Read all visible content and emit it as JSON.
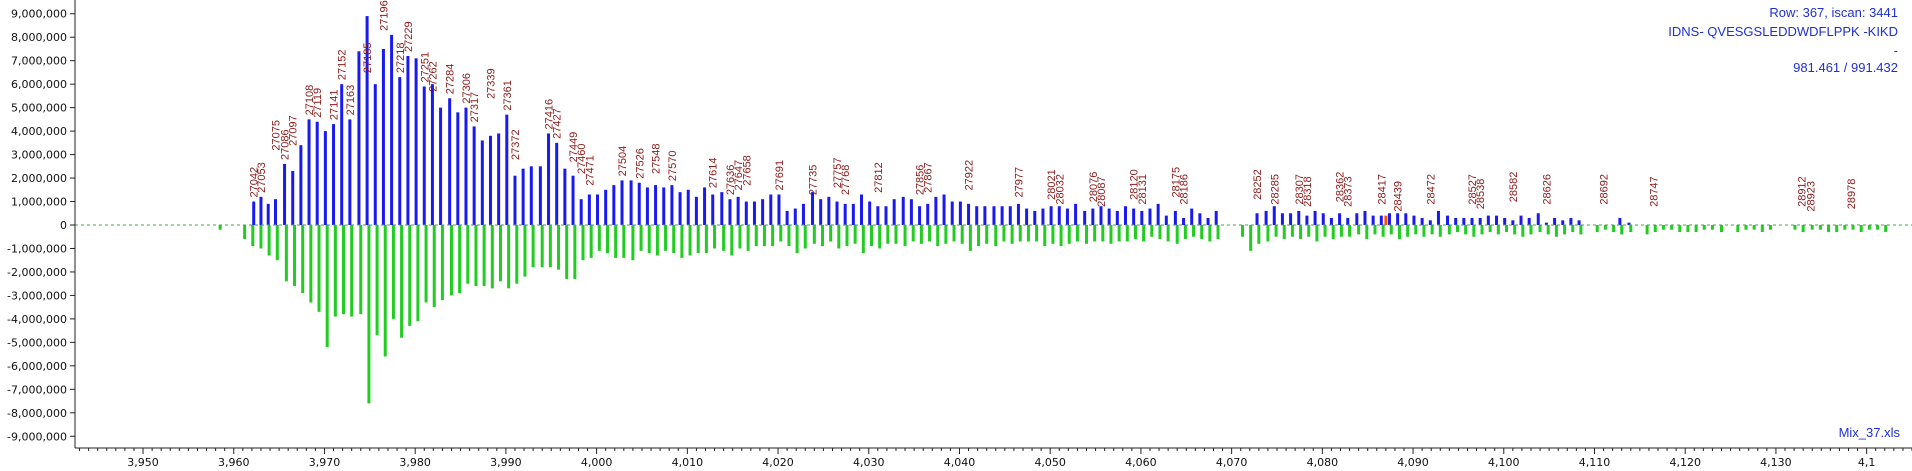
{
  "info": {
    "line1": "Row: 367, iscan: 3441",
    "line2": "IDNS- QVESGSLEDDWDFLPPK -KIKD",
    "line3": "-",
    "line4": "981.461 / 991.432",
    "file": "Mix_37.xls"
  },
  "colors": {
    "positive": "#1a1aee",
    "negative": "#22cc22",
    "highlight": "#ff5500",
    "label": "#8b1a1a",
    "zero_line": "#44aa44",
    "info": "#1f2fd6"
  },
  "chart_data": {
    "type": "bar",
    "title": "",
    "xlabel": "",
    "ylabel": "",
    "xlim": [
      3942.5,
      4145
    ],
    "ylim": [
      -9500000,
      9500000
    ],
    "y_ticks": [
      "9,000,000",
      "8,000,000",
      "7,000,000",
      "6,000,000",
      "5,000,000",
      "4,000,000",
      "3,000,000",
      "2,000,000",
      "1,000,000",
      "0",
      "-1,000,000",
      "-2,000,000",
      "-3,000,000",
      "-4,000,000",
      "-5,000,000",
      "-6,000,000",
      "-7,000,000",
      "-8,000,000",
      "-9,000,000"
    ],
    "y_tick_values": [
      9000000,
      8000000,
      7000000,
      6000000,
      5000000,
      4000000,
      3000000,
      2000000,
      1000000,
      0,
      -1000000,
      -2000000,
      -3000000,
      -4000000,
      -5000000,
      -6000000,
      -7000000,
      -8000000,
      -9000000
    ],
    "x_ticks": [
      "3,950",
      "3,960",
      "3,970",
      "3,980",
      "3,990",
      "4,000",
      "4,010",
      "4,020",
      "4,030",
      "4,040",
      "4,050",
      "4,060",
      "4,070",
      "4,080",
      "4,090",
      "4,100",
      "4,110",
      "4,120",
      "4,130",
      "4,1"
    ],
    "x_tick_values": [
      3950,
      3960,
      3970,
      3980,
      3990,
      4000,
      4010,
      4020,
      4030,
      4040,
      4050,
      4060,
      4070,
      4080,
      4090,
      4100,
      4110,
      4120,
      4130,
      4140
    ],
    "positive_x": [
      3962.2,
      3963.0,
      3963.8,
      3964.6,
      3965.6,
      3966.5,
      3967.4,
      3968.3,
      3969.2,
      3970.1,
      3971.0,
      3971.9,
      3972.8,
      3973.8,
      3974.7,
      3975.6,
      3976.5,
      3977.4,
      3978.3,
      3979.2,
      3980.1,
      3981.0,
      3981.9,
      3982.8,
      3983.8,
      3984.7,
      3985.6,
      3986.5,
      3987.4,
      3988.3,
      3989.2,
      3990.1,
      3991.0,
      3991.9,
      3992.8,
      3993.8,
      3994.7,
      3995.6,
      3996.5,
      3997.4,
      3998.3,
      3999.2,
      4000.1,
      4001.0,
      4001.9,
      4002.8,
      4003.8,
      4004.7,
      4005.6,
      4006.5,
      4007.4,
      4008.3,
      4009.2,
      4010.1,
      4011.0,
      4011.9,
      4012.8,
      4013.8,
      4014.7,
      4015.6,
      4016.5,
      4017.4,
      4018.3,
      4019.2,
      4020.1,
      4021.0,
      4021.9,
      4022.8,
      4023.8,
      4024.7,
      4025.6,
      4026.5,
      4027.4,
      4028.3,
      4029.2,
      4030.1,
      4031.0,
      4031.9,
      4032.8,
      4033.8,
      4034.7,
      4035.6,
      4036.5,
      4037.4,
      4038.3,
      4039.2,
      4040.1,
      4041.0,
      4041.9,
      4042.8,
      4043.8,
      4044.7,
      4045.6,
      4046.5,
      4047.4,
      4048.3,
      4049.2,
      4050.1,
      4051.0,
      4051.9,
      4052.8,
      4053.8,
      4054.7,
      4055.6,
      4056.5,
      4057.4,
      4058.3,
      4059.2,
      4060.1,
      4061.0,
      4061.9,
      4062.8,
      4063.8,
      4064.7,
      4065.6,
      4066.5,
      4067.4,
      4068.3,
      4072.8,
      4073.8,
      4074.7,
      4075.6,
      4076.5,
      4077.4,
      4078.3,
      4079.2,
      4080.1,
      4081.0,
      4081.9,
      4082.8,
      4083.8,
      4084.7,
      4085.6,
      4086.5,
      4087.4,
      4088.3,
      4089.2,
      4090.1,
      4091.0,
      4091.9,
      4092.8,
      4093.8,
      4094.7,
      4095.6,
      4096.5,
      4097.4,
      4098.3,
      4099.2,
      4100.1,
      4101.0,
      4101.9,
      4102.8,
      4103.8,
      4104.7,
      4105.6,
      4106.5,
      4107.4,
      4108.3,
      4112.8,
      4113.8,
      4118.3,
      4119.2,
      4132.8,
      4133.8,
      4138.3
    ],
    "positive_values": [
      1000000,
      1200000,
      900000,
      1100000,
      2600000,
      2300000,
      3400000,
      4500000,
      4400000,
      4000000,
      4300000,
      6000000,
      4500000,
      7400000,
      8900000,
      6000000,
      7500000,
      8100000,
      6300000,
      7200000,
      7100000,
      5900000,
      6000000,
      5000000,
      5400000,
      4800000,
      5000000,
      4200000,
      3600000,
      3800000,
      3900000,
      4700000,
      2100000,
      2400000,
      2500000,
      2500000,
      3900000,
      3500000,
      2400000,
      2100000,
      1100000,
      1300000,
      1300000,
      1500000,
      1700000,
      1900000,
      1900000,
      1800000,
      1600000,
      1700000,
      1600000,
      1700000,
      1400000,
      1500000,
      1200000,
      1600000,
      1300000,
      1400000,
      1100000,
      1200000,
      1000000,
      1000000,
      1100000,
      1300000,
      1300000,
      600000,
      700000,
      900000,
      1400000,
      1100000,
      1200000,
      1000000,
      900000,
      900000,
      1300000,
      1000000,
      800000,
      800000,
      1100000,
      1200000,
      1100000,
      800000,
      900000,
      1200000,
      1300000,
      1000000,
      1000000,
      900000,
      800000,
      800000,
      800000,
      800000,
      800000,
      900000,
      700000,
      600000,
      700000,
      800000,
      800000,
      700000,
      900000,
      600000,
      700000,
      800000,
      700000,
      600000,
      800000,
      700000,
      600000,
      700000,
      900000,
      400000,
      600000,
      300000,
      700000,
      500000,
      300000,
      600000,
      500000,
      600000,
      800000,
      500000,
      500000,
      600000,
      400000,
      600000,
      500000,
      300000,
      500000,
      300000,
      500000,
      600000,
      400000,
      400000,
      500000,
      500000,
      500000,
      400000,
      300000,
      200000,
      600000,
      400000,
      300000,
      300000,
      300000,
      300000,
      400000,
      400000,
      300000,
      200000,
      400000,
      300000,
      500000,
      100000,
      300000,
      200000,
      300000,
      200000,
      300000,
      100000
    ],
    "highlight_x": [
      4087.0
    ],
    "highlight_values": [
      400000
    ],
    "negative_x": [
      3958.5,
      3961.2,
      3962.1,
      3963.0,
      3963.9,
      3964.8,
      3965.8,
      3966.7,
      3967.6,
      3968.5,
      3969.4,
      3970.3,
      3971.2,
      3972.1,
      3973.0,
      3974.0,
      3974.9,
      3975.8,
      3976.7,
      3977.6,
      3978.5,
      3979.4,
      3980.3,
      3981.2,
      3982.1,
      3983.0,
      3984.0,
      3984.9,
      3985.8,
      3986.7,
      3987.6,
      3988.5,
      3989.4,
      3990.3,
      3991.2,
      3992.1,
      3993.0,
      3994.0,
      3994.9,
      3995.8,
      3996.7,
      3997.6,
      3998.5,
      3999.4,
      4000.3,
      4001.2,
      4002.1,
      4003.0,
      4004.0,
      4004.9,
      4005.8,
      4006.7,
      4007.6,
      4008.5,
      4009.4,
      4010.3,
      4011.2,
      4012.1,
      4013.0,
      4014.0,
      4014.9,
      4015.8,
      4016.7,
      4017.6,
      4018.5,
      4019.4,
      4020.3,
      4021.2,
      4022.1,
      4023.0,
      4024.0,
      4024.9,
      4025.8,
      4026.7,
      4027.6,
      4028.5,
      4029.4,
      4030.3,
      4031.2,
      4032.1,
      4033.0,
      4034.0,
      4034.9,
      4035.8,
      4036.7,
      4037.6,
      4038.5,
      4039.4,
      4040.3,
      4041.2,
      4042.1,
      4043.0,
      4044.0,
      4044.9,
      4045.8,
      4046.7,
      4047.6,
      4048.5,
      4049.4,
      4050.3,
      4051.2,
      4052.1,
      4053.0,
      4054.0,
      4054.9,
      4055.8,
      4056.7,
      4057.6,
      4058.5,
      4059.4,
      4060.3,
      4061.2,
      4062.1,
      4063.0,
      4064.0,
      4064.9,
      4065.8,
      4066.7,
      4067.6,
      4068.5,
      4071.2,
      4072.1,
      4073.0,
      4074.0,
      4074.9,
      4075.8,
      4076.7,
      4077.6,
      4078.5,
      4079.4,
      4080.3,
      4081.2,
      4082.1,
      4083.0,
      4084.0,
      4084.9,
      4085.8,
      4086.7,
      4087.6,
      4088.5,
      4089.4,
      4090.3,
      4091.2,
      4092.1,
      4093.0,
      4094.0,
      4094.9,
      4095.8,
      4096.7,
      4097.6,
      4098.5,
      4099.4,
      4100.3,
      4101.2,
      4102.1,
      4103.0,
      4104.0,
      4104.9,
      4105.8,
      4106.7,
      4107.6,
      4108.5,
      4110.3,
      4111.2,
      4112.1,
      4113.0,
      4114.0,
      4115.8,
      4116.7,
      4117.6,
      4118.5,
      4119.4,
      4120.3,
      4121.2,
      4122.1,
      4123.0,
      4124.0,
      4125.8,
      4126.7,
      4127.6,
      4128.5,
      4129.4,
      4132.1,
      4133.0,
      4134.0,
      4134.9,
      4135.8,
      4136.7,
      4137.6,
      4138.5,
      4139.4,
      4140.3,
      4141.2,
      4142.1
    ],
    "negative_values": [
      -200000,
      -600000,
      -900000,
      -1000000,
      -1300000,
      -1500000,
      -2400000,
      -2600000,
      -2900000,
      -3300000,
      -3700000,
      -5200000,
      -3900000,
      -3800000,
      -3900000,
      -3800000,
      -7600000,
      -4700000,
      -5600000,
      -4000000,
      -4800000,
      -4300000,
      -4100000,
      -3300000,
      -3500000,
      -3200000,
      -3000000,
      -2900000,
      -2500000,
      -2600000,
      -2600000,
      -2700000,
      -2400000,
      -2700000,
      -2500000,
      -2200000,
      -1800000,
      -1800000,
      -1800000,
      -1900000,
      -2300000,
      -2300000,
      -1500000,
      -1400000,
      -1100000,
      -1200000,
      -1400000,
      -1400000,
      -1500000,
      -1100000,
      -1200000,
      -1300000,
      -1100000,
      -1200000,
      -1400000,
      -1300000,
      -1200000,
      -1200000,
      -1000000,
      -1100000,
      -1300000,
      -1000000,
      -1100000,
      -900000,
      -900000,
      -900000,
      -700000,
      -900000,
      -1200000,
      -1000000,
      -800000,
      -900000,
      -700000,
      -1000000,
      -900000,
      -800000,
      -1200000,
      -900000,
      -1000000,
      -800000,
      -800000,
      -900000,
      -700000,
      -800000,
      -700000,
      -900000,
      -800000,
      -700000,
      -800000,
      -1100000,
      -900000,
      -800000,
      -900000,
      -700000,
      -800000,
      -700000,
      -700000,
      -700000,
      -900000,
      -800000,
      -900000,
      -800000,
      -700000,
      -800000,
      -700000,
      -700000,
      -800000,
      -700000,
      -700000,
      -600000,
      -700000,
      -500000,
      -600000,
      -700000,
      -800000,
      -600000,
      -500000,
      -600000,
      -700000,
      -600000,
      -500000,
      -1100000,
      -800000,
      -700000,
      -500000,
      -600000,
      -500000,
      -600000,
      -500000,
      -700000,
      -500000,
      -600000,
      -500000,
      -500000,
      -400000,
      -600000,
      -400000,
      -500000,
      -400000,
      -600000,
      -500000,
      -400000,
      -500000,
      -400000,
      -500000,
      -400000,
      -300000,
      -400000,
      -500000,
      -400000,
      -300000,
      -400000,
      -300000,
      -400000,
      -500000,
      -400000,
      -300000,
      -400000,
      -500000,
      -400000,
      -300000,
      -400000,
      -300000,
      -200000,
      -300000,
      -400000,
      -300000,
      -400000,
      -300000,
      -200000,
      -200000,
      -300000,
      -300000,
      -300000,
      -200000,
      -200000,
      -300000,
      -300000,
      -200000,
      -200000,
      -300000,
      -200000,
      -200000,
      -300000,
      -200000,
      -200000,
      -300000,
      -300000,
      -200000,
      -200000,
      -300000,
      -200000,
      -200000,
      -300000,
      -200000,
      -300000
    ],
    "peak_labels": [
      {
        "text": "27042",
        "x": 3962.2,
        "y": 1000000
      },
      {
        "text": "27053",
        "x": 3963.0,
        "y": 1200000
      },
      {
        "text": "27075",
        "x": 3964.6,
        "y": 3000000
      },
      {
        "text": "27086",
        "x": 3965.6,
        "y": 2600000
      },
      {
        "text": "27097",
        "x": 3966.5,
        "y": 3200000
      },
      {
        "text": "27108",
        "x": 3968.3,
        "y": 4500000
      },
      {
        "text": "27119",
        "x": 3969.2,
        "y": 4400000
      },
      {
        "text": "27141",
        "x": 3971.0,
        "y": 4300000
      },
      {
        "text": "27152",
        "x": 3971.9,
        "y": 6000000
      },
      {
        "text": "27163",
        "x": 3972.8,
        "y": 4500000
      },
      {
        "text": "27185",
        "x": 3974.7,
        "y": 6300000
      },
      {
        "text": "27196",
        "x": 3976.5,
        "y": 8100000
      },
      {
        "text": "27218",
        "x": 3978.3,
        "y": 6300000
      },
      {
        "text": "27229",
        "x": 3979.2,
        "y": 7200000
      },
      {
        "text": "27251",
        "x": 3981.0,
        "y": 5900000
      },
      {
        "text": "27262",
        "x": 3981.9,
        "y": 5500000
      },
      {
        "text": "27284",
        "x": 3983.8,
        "y": 5400000
      },
      {
        "text": "27306",
        "x": 3985.6,
        "y": 5000000
      },
      {
        "text": "27317",
        "x": 3986.5,
        "y": 4200000
      },
      {
        "text": "27339",
        "x": 3988.3,
        "y": 5200000
      },
      {
        "text": "27361",
        "x": 3990.1,
        "y": 4700000
      },
      {
        "text": "27372",
        "x": 3991.0,
        "y": 2600000
      },
      {
        "text": "27416",
        "x": 3994.7,
        "y": 3900000
      },
      {
        "text": "27427",
        "x": 3995.6,
        "y": 3500000
      },
      {
        "text": "27449",
        "x": 3997.4,
        "y": 2500000
      },
      {
        "text": "27460",
        "x": 3998.3,
        "y": 2000000
      },
      {
        "text": "27471",
        "x": 3999.2,
        "y": 1500000
      },
      {
        "text": "27504",
        "x": 4002.8,
        "y": 1900000
      },
      {
        "text": "27526",
        "x": 4004.7,
        "y": 1800000
      },
      {
        "text": "27548",
        "x": 4006.5,
        "y": 2000000
      },
      {
        "text": "27570",
        "x": 4008.3,
        "y": 1700000
      },
      {
        "text": "27614",
        "x": 4012.8,
        "y": 1400000
      },
      {
        "text": "27636",
        "x": 4014.7,
        "y": 1100000
      },
      {
        "text": "27647",
        "x": 4015.6,
        "y": 1300000
      },
      {
        "text": "27658",
        "x": 4016.5,
        "y": 1500000
      },
      {
        "text": "27691",
        "x": 4020.1,
        "y": 1300000
      },
      {
        "text": "27735",
        "x": 4023.8,
        "y": 1100000
      },
      {
        "text": "27757",
        "x": 4026.5,
        "y": 1400000
      },
      {
        "text": "27768",
        "x": 4027.4,
        "y": 1100000
      },
      {
        "text": "27812",
        "x": 4031.0,
        "y": 1200000
      },
      {
        "text": "27856",
        "x": 4035.6,
        "y": 1100000
      },
      {
        "text": "27867",
        "x": 4036.5,
        "y": 1200000
      },
      {
        "text": "27922",
        "x": 4041.0,
        "y": 1300000
      },
      {
        "text": "27977",
        "x": 4046.5,
        "y": 1000000
      },
      {
        "text": "28021",
        "x": 4050.1,
        "y": 900000
      },
      {
        "text": "28032",
        "x": 4051.0,
        "y": 700000
      },
      {
        "text": "28076",
        "x": 4054.7,
        "y": 800000
      },
      {
        "text": "28087",
        "x": 4055.6,
        "y": 600000
      },
      {
        "text": "28120",
        "x": 4059.2,
        "y": 900000
      },
      {
        "text": "28131",
        "x": 4060.1,
        "y": 700000
      },
      {
        "text": "28175",
        "x": 4063.8,
        "y": 1000000
      },
      {
        "text": "28186",
        "x": 4064.7,
        "y": 700000
      },
      {
        "text": "28252",
        "x": 4072.8,
        "y": 900000
      },
      {
        "text": "28285",
        "x": 4074.7,
        "y": 700000
      },
      {
        "text": "28307",
        "x": 4077.4,
        "y": 700000
      },
      {
        "text": "28318",
        "x": 4078.3,
        "y": 600000
      },
      {
        "text": "28362",
        "x": 4081.9,
        "y": 800000
      },
      {
        "text": "28373",
        "x": 4082.8,
        "y": 600000
      },
      {
        "text": "28417",
        "x": 4086.5,
        "y": 700000
      },
      {
        "text": "28439",
        "x": 4088.3,
        "y": 400000
      },
      {
        "text": "28472",
        "x": 4091.9,
        "y": 700000
      },
      {
        "text": "28527",
        "x": 4096.5,
        "y": 700000
      },
      {
        "text": "28538",
        "x": 4097.4,
        "y": 500000
      },
      {
        "text": "28582",
        "x": 4101.0,
        "y": 800000
      },
      {
        "text": "28626",
        "x": 4104.7,
        "y": 700000
      },
      {
        "text": "28692",
        "x": 4111.0,
        "y": 700000
      },
      {
        "text": "28747",
        "x": 4116.5,
        "y": 600000
      },
      {
        "text": "28912",
        "x": 4132.8,
        "y": 600000
      },
      {
        "text": "28923",
        "x": 4133.8,
        "y": 400000
      },
      {
        "text": "28978",
        "x": 4138.3,
        "y": 500000
      }
    ]
  }
}
